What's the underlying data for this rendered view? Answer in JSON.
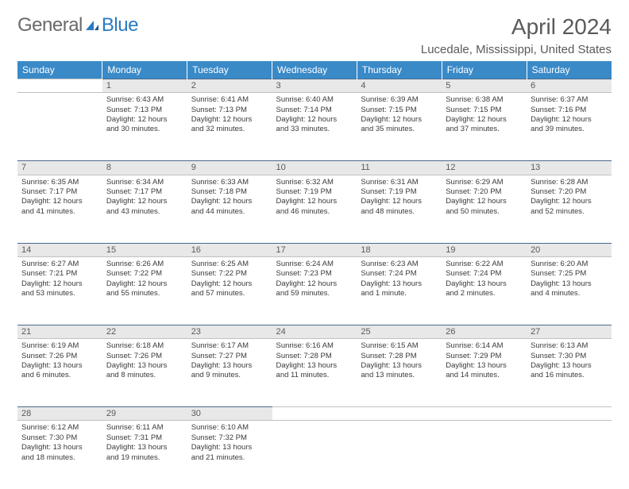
{
  "brand": {
    "general": "General",
    "blue": "Blue"
  },
  "title": "April 2024",
  "location": "Lucedale, Mississippi, United States",
  "header_bg": "#3a8ac8",
  "daynum_bg": "#e8e8e8",
  "border_color": "#4a6a8a",
  "weekdays": [
    "Sunday",
    "Monday",
    "Tuesday",
    "Wednesday",
    "Thursday",
    "Friday",
    "Saturday"
  ],
  "weeks": [
    [
      null,
      {
        "n": "1",
        "sr": "Sunrise: 6:43 AM",
        "ss": "Sunset: 7:13 PM",
        "d1": "Daylight: 12 hours",
        "d2": "and 30 minutes."
      },
      {
        "n": "2",
        "sr": "Sunrise: 6:41 AM",
        "ss": "Sunset: 7:13 PM",
        "d1": "Daylight: 12 hours",
        "d2": "and 32 minutes."
      },
      {
        "n": "3",
        "sr": "Sunrise: 6:40 AM",
        "ss": "Sunset: 7:14 PM",
        "d1": "Daylight: 12 hours",
        "d2": "and 33 minutes."
      },
      {
        "n": "4",
        "sr": "Sunrise: 6:39 AM",
        "ss": "Sunset: 7:15 PM",
        "d1": "Daylight: 12 hours",
        "d2": "and 35 minutes."
      },
      {
        "n": "5",
        "sr": "Sunrise: 6:38 AM",
        "ss": "Sunset: 7:15 PM",
        "d1": "Daylight: 12 hours",
        "d2": "and 37 minutes."
      },
      {
        "n": "6",
        "sr": "Sunrise: 6:37 AM",
        "ss": "Sunset: 7:16 PM",
        "d1": "Daylight: 12 hours",
        "d2": "and 39 minutes."
      }
    ],
    [
      {
        "n": "7",
        "sr": "Sunrise: 6:35 AM",
        "ss": "Sunset: 7:17 PM",
        "d1": "Daylight: 12 hours",
        "d2": "and 41 minutes."
      },
      {
        "n": "8",
        "sr": "Sunrise: 6:34 AM",
        "ss": "Sunset: 7:17 PM",
        "d1": "Daylight: 12 hours",
        "d2": "and 43 minutes."
      },
      {
        "n": "9",
        "sr": "Sunrise: 6:33 AM",
        "ss": "Sunset: 7:18 PM",
        "d1": "Daylight: 12 hours",
        "d2": "and 44 minutes."
      },
      {
        "n": "10",
        "sr": "Sunrise: 6:32 AM",
        "ss": "Sunset: 7:19 PM",
        "d1": "Daylight: 12 hours",
        "d2": "and 46 minutes."
      },
      {
        "n": "11",
        "sr": "Sunrise: 6:31 AM",
        "ss": "Sunset: 7:19 PM",
        "d1": "Daylight: 12 hours",
        "d2": "and 48 minutes."
      },
      {
        "n": "12",
        "sr": "Sunrise: 6:29 AM",
        "ss": "Sunset: 7:20 PM",
        "d1": "Daylight: 12 hours",
        "d2": "and 50 minutes."
      },
      {
        "n": "13",
        "sr": "Sunrise: 6:28 AM",
        "ss": "Sunset: 7:20 PM",
        "d1": "Daylight: 12 hours",
        "d2": "and 52 minutes."
      }
    ],
    [
      {
        "n": "14",
        "sr": "Sunrise: 6:27 AM",
        "ss": "Sunset: 7:21 PM",
        "d1": "Daylight: 12 hours",
        "d2": "and 53 minutes."
      },
      {
        "n": "15",
        "sr": "Sunrise: 6:26 AM",
        "ss": "Sunset: 7:22 PM",
        "d1": "Daylight: 12 hours",
        "d2": "and 55 minutes."
      },
      {
        "n": "16",
        "sr": "Sunrise: 6:25 AM",
        "ss": "Sunset: 7:22 PM",
        "d1": "Daylight: 12 hours",
        "d2": "and 57 minutes."
      },
      {
        "n": "17",
        "sr": "Sunrise: 6:24 AM",
        "ss": "Sunset: 7:23 PM",
        "d1": "Daylight: 12 hours",
        "d2": "and 59 minutes."
      },
      {
        "n": "18",
        "sr": "Sunrise: 6:23 AM",
        "ss": "Sunset: 7:24 PM",
        "d1": "Daylight: 13 hours",
        "d2": "and 1 minute."
      },
      {
        "n": "19",
        "sr": "Sunrise: 6:22 AM",
        "ss": "Sunset: 7:24 PM",
        "d1": "Daylight: 13 hours",
        "d2": "and 2 minutes."
      },
      {
        "n": "20",
        "sr": "Sunrise: 6:20 AM",
        "ss": "Sunset: 7:25 PM",
        "d1": "Daylight: 13 hours",
        "d2": "and 4 minutes."
      }
    ],
    [
      {
        "n": "21",
        "sr": "Sunrise: 6:19 AM",
        "ss": "Sunset: 7:26 PM",
        "d1": "Daylight: 13 hours",
        "d2": "and 6 minutes."
      },
      {
        "n": "22",
        "sr": "Sunrise: 6:18 AM",
        "ss": "Sunset: 7:26 PM",
        "d1": "Daylight: 13 hours",
        "d2": "and 8 minutes."
      },
      {
        "n": "23",
        "sr": "Sunrise: 6:17 AM",
        "ss": "Sunset: 7:27 PM",
        "d1": "Daylight: 13 hours",
        "d2": "and 9 minutes."
      },
      {
        "n": "24",
        "sr": "Sunrise: 6:16 AM",
        "ss": "Sunset: 7:28 PM",
        "d1": "Daylight: 13 hours",
        "d2": "and 11 minutes."
      },
      {
        "n": "25",
        "sr": "Sunrise: 6:15 AM",
        "ss": "Sunset: 7:28 PM",
        "d1": "Daylight: 13 hours",
        "d2": "and 13 minutes."
      },
      {
        "n": "26",
        "sr": "Sunrise: 6:14 AM",
        "ss": "Sunset: 7:29 PM",
        "d1": "Daylight: 13 hours",
        "d2": "and 14 minutes."
      },
      {
        "n": "27",
        "sr": "Sunrise: 6:13 AM",
        "ss": "Sunset: 7:30 PM",
        "d1": "Daylight: 13 hours",
        "d2": "and 16 minutes."
      }
    ],
    [
      {
        "n": "28",
        "sr": "Sunrise: 6:12 AM",
        "ss": "Sunset: 7:30 PM",
        "d1": "Daylight: 13 hours",
        "d2": "and 18 minutes."
      },
      {
        "n": "29",
        "sr": "Sunrise: 6:11 AM",
        "ss": "Sunset: 7:31 PM",
        "d1": "Daylight: 13 hours",
        "d2": "and 19 minutes."
      },
      {
        "n": "30",
        "sr": "Sunrise: 6:10 AM",
        "ss": "Sunset: 7:32 PM",
        "d1": "Daylight: 13 hours",
        "d2": "and 21 minutes."
      },
      null,
      null,
      null,
      null
    ]
  ]
}
